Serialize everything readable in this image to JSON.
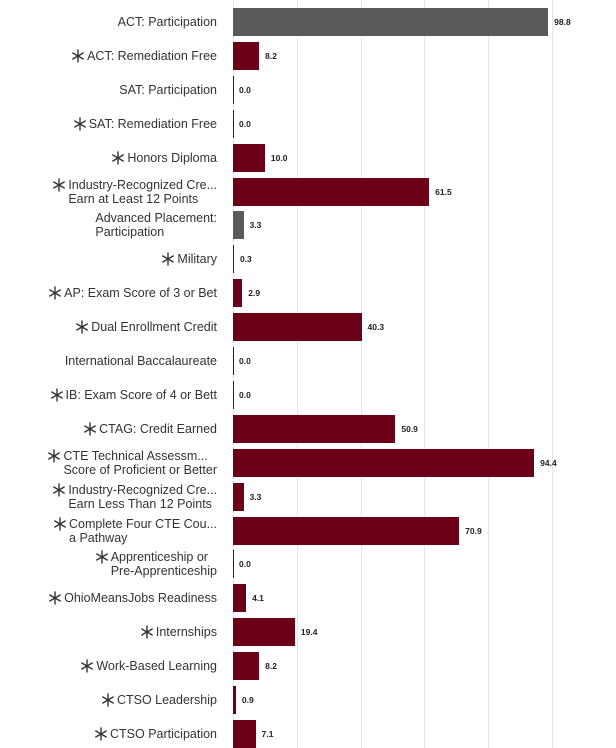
{
  "chart_data": {
    "type": "bar",
    "orientation": "horizontal",
    "categories": [
      "ACT: Participation",
      "ACT: Remediation Free",
      "SAT: Participation",
      "SAT: Remediation Free",
      "Honors Diploma",
      "Industry-Recognized Cre...\nEarn at Least 12 Points",
      "Advanced Placement:\nParticipation",
      "Military",
      "AP: Exam Score of 3 or Bet",
      "Dual Enrollment Credit",
      "International Baccalaureate",
      "IB: Exam Score of 4 or Bett",
      "CTAG: Credit Earned",
      "CTE Technical Assessm...\nScore of Proficient or Better",
      "Industry-Recognized Cre...\nEarn Less Than 12 Points",
      "Complete Four CTE Cou...\na Pathway",
      "Apprenticeship or\nPre-Apprenticeship",
      "OhioMeansJobs Readiness",
      "Internships",
      "Work-Based Learning",
      "CTSO Leadership",
      "CTSO Participation"
    ],
    "starred": [
      false,
      true,
      false,
      true,
      true,
      true,
      false,
      true,
      true,
      true,
      false,
      true,
      true,
      true,
      true,
      true,
      true,
      true,
      true,
      true,
      true,
      true
    ],
    "values": [
      98.8,
      8.2,
      0,
      0,
      10,
      61.5,
      3.3,
      0.3,
      2.9,
      40.3,
      0,
      0,
      50.9,
      94.4,
      3.3,
      70.9,
      0,
      4.1,
      19.4,
      8.2,
      0.9,
      7.1
    ],
    "value_labels": [
      "98.8",
      "8.2",
      "0.0",
      "0.0",
      "10.0",
      "61.5",
      "3.3",
      "0.3",
      "2.9",
      "40.3",
      "0.0",
      "0.0",
      "50.9",
      "94.4",
      "3.3",
      "70.9",
      "0.0",
      "4.1",
      "19.4",
      "8.2",
      "0.9",
      "7.1"
    ],
    "colors": [
      "#5a5a5a",
      "#6d0019",
      "#6d0019",
      "#6d0019",
      "#6d0019",
      "#6d0019",
      "#5a5a5a",
      "#6d0019",
      "#6d0019",
      "#6d0019",
      "#6d0019",
      "#6d0019",
      "#6d0019",
      "#6d0019",
      "#6d0019",
      "#6d0019",
      "#6d0019",
      "#6d0019",
      "#6d0019",
      "#6d0019",
      "#6d0019",
      "#6d0019"
    ],
    "xlim": [
      0,
      100
    ],
    "xticks": [
      0,
      20,
      40,
      60,
      80,
      100
    ],
    "grid": true
  }
}
